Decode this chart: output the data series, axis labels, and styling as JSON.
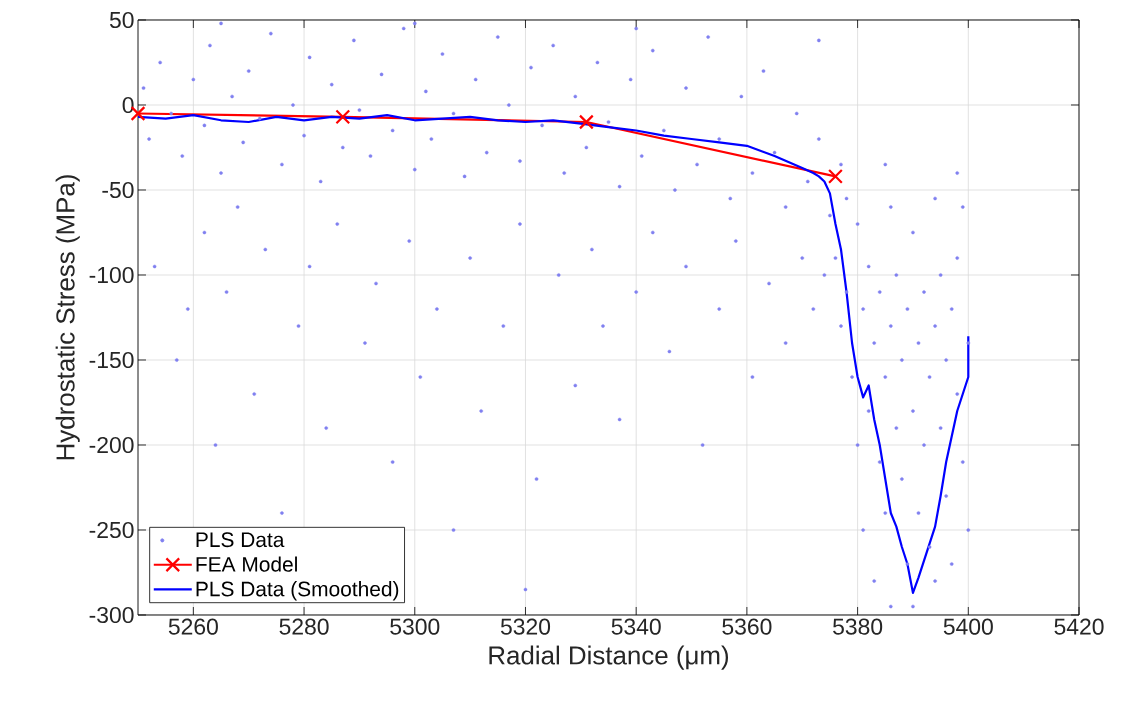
{
  "chart_data": {
    "type": "line",
    "xlabel": "Radial Distance (μm)",
    "ylabel": "Hydrostatic Stress (MPa)",
    "xlim": [
      5250,
      5420
    ],
    "ylim": [
      -300,
      50
    ],
    "xticks": [
      5260,
      5280,
      5300,
      5320,
      5340,
      5360,
      5380,
      5400,
      5420
    ],
    "yticks": [
      -300,
      -250,
      -200,
      -150,
      -100,
      -50,
      0,
      50
    ],
    "grid": true,
    "legend": "bottom left",
    "series": [
      {
        "name": "PLS Data",
        "type": "scatter",
        "marker": "circle",
        "color": "#8080f0",
        "x": [
          5251,
          5252,
          5254,
          5256,
          5258,
          5260,
          5262,
          5263,
          5265,
          5267,
          5269,
          5270,
          5272,
          5274,
          5276,
          5278,
          5280,
          5281,
          5283,
          5285,
          5287,
          5289,
          5290,
          5292,
          5294,
          5296,
          5298,
          5300,
          5302,
          5303,
          5305,
          5307,
          5309,
          5311,
          5313,
          5315,
          5317,
          5319,
          5321,
          5323,
          5325,
          5327,
          5329,
          5331,
          5333,
          5335,
          5337,
          5339,
          5341,
          5343,
          5345,
          5347,
          5349,
          5351,
          5353,
          5355,
          5357,
          5359,
          5361,
          5363,
          5365,
          5367,
          5369,
          5371,
          5373,
          5375,
          5377,
          5378,
          5253,
          5257,
          5259,
          5262,
          5264,
          5266,
          5268,
          5271,
          5273,
          5276,
          5279,
          5281,
          5284,
          5286,
          5320,
          5291,
          5293,
          5296,
          5299,
          5301,
          5304,
          5307,
          5310,
          5312,
          5316,
          5319,
          5322,
          5326,
          5329,
          5332,
          5334,
          5337,
          5340,
          5343,
          5346,
          5349,
          5352,
          5355,
          5358,
          5361,
          5364,
          5367,
          5370,
          5372,
          5374,
          5376,
          5377,
          5378,
          5379,
          5380,
          5380,
          5381,
          5381,
          5382,
          5382,
          5383,
          5383,
          5384,
          5384,
          5385,
          5385,
          5386,
          5386,
          5387,
          5387,
          5388,
          5388,
          5389,
          5389,
          5390,
          5390,
          5391,
          5391,
          5392,
          5392,
          5393,
          5393,
          5394,
          5394,
          5395,
          5395,
          5396,
          5396,
          5397,
          5397,
          5398,
          5398,
          5399,
          5399,
          5400,
          5400,
          5386,
          5390,
          5394,
          5398,
          5373,
          5265,
          5300,
          5340,
          5385
        ],
        "values": [
          10,
          -20,
          25,
          -5,
          -30,
          15,
          -12,
          35,
          -40,
          5,
          -22,
          20,
          -8,
          42,
          -35,
          0,
          -18,
          28,
          -45,
          12,
          -25,
          38,
          -3,
          -30,
          18,
          -15,
          45,
          -38,
          8,
          -20,
          30,
          -5,
          -42,
          15,
          -28,
          40,
          0,
          -33,
          22,
          -12,
          35,
          -40,
          5,
          -25,
          25,
          -10,
          -48,
          15,
          -30,
          32,
          -15,
          -50,
          10,
          -35,
          40,
          -20,
          -55,
          5,
          -40,
          20,
          -28,
          -60,
          -5,
          -45,
          -20,
          -65,
          -35,
          -55,
          -95,
          -150,
          -120,
          -75,
          -200,
          -110,
          -60,
          -170,
          -85,
          -240,
          -130,
          -95,
          -190,
          -70,
          -285,
          -140,
          -105,
          -210,
          -80,
          -160,
          -120,
          -250,
          -90,
          -180,
          -130,
          -70,
          -220,
          -100,
          -165,
          -85,
          -130,
          -185,
          -110,
          -75,
          -145,
          -95,
          -200,
          -120,
          -80,
          -160,
          -105,
          -140,
          -90,
          -120,
          -100,
          -90,
          -130,
          -110,
          -160,
          -70,
          -200,
          -120,
          -250,
          -95,
          -180,
          -140,
          -280,
          -210,
          -110,
          -160,
          -240,
          -130,
          -295,
          -190,
          -100,
          -220,
          -150,
          -270,
          -120,
          -180,
          -295,
          -140,
          -240,
          -200,
          -110,
          -260,
          -160,
          -130,
          -280,
          -190,
          -100,
          -230,
          -150,
          -120,
          -270,
          -170,
          -90,
          -210,
          -60,
          -140,
          -250,
          -60,
          -75,
          -55,
          -40,
          38,
          48,
          48,
          45,
          -35
        ]
      },
      {
        "name": "FEA Model",
        "marker": "cross",
        "color": "#ff0000",
        "x": [
          5250,
          5287,
          5331,
          5376
        ],
        "values": [
          -5,
          -7,
          -10,
          -42
        ]
      },
      {
        "name": "PLS Data (Smoothed)",
        "marker": "none",
        "color": "#0000ff",
        "x": [
          5250,
          5255,
          5260,
          5265,
          5270,
          5275,
          5280,
          5285,
          5290,
          5295,
          5300,
          5305,
          5310,
          5315,
          5320,
          5325,
          5330,
          5335,
          5340,
          5345,
          5350,
          5355,
          5360,
          5365,
          5370,
          5372,
          5373,
          5374,
          5375,
          5376,
          5377,
          5378,
          5379,
          5380,
          5381,
          5382,
          5383,
          5384,
          5385,
          5386,
          5387,
          5388,
          5389,
          5390,
          5391,
          5392,
          5393,
          5394,
          5395,
          5396,
          5397,
          5398,
          5399,
          5400,
          5400
        ],
        "values": [
          -7,
          -8,
          -6,
          -9,
          -10,
          -7,
          -9,
          -7,
          -8,
          -6,
          -9,
          -8,
          -7,
          -9,
          -10,
          -9,
          -11,
          -13,
          -15,
          -18,
          -20,
          -22,
          -24,
          -30,
          -37,
          -40,
          -42,
          -45,
          -52,
          -70,
          -85,
          -110,
          -140,
          -160,
          -172,
          -165,
          -185,
          -200,
          -220,
          -240,
          -248,
          -260,
          -270,
          -287,
          -278,
          -268,
          -258,
          -248,
          -230,
          -210,
          -195,
          -180,
          -170,
          -160,
          -136
        ]
      }
    ]
  }
}
